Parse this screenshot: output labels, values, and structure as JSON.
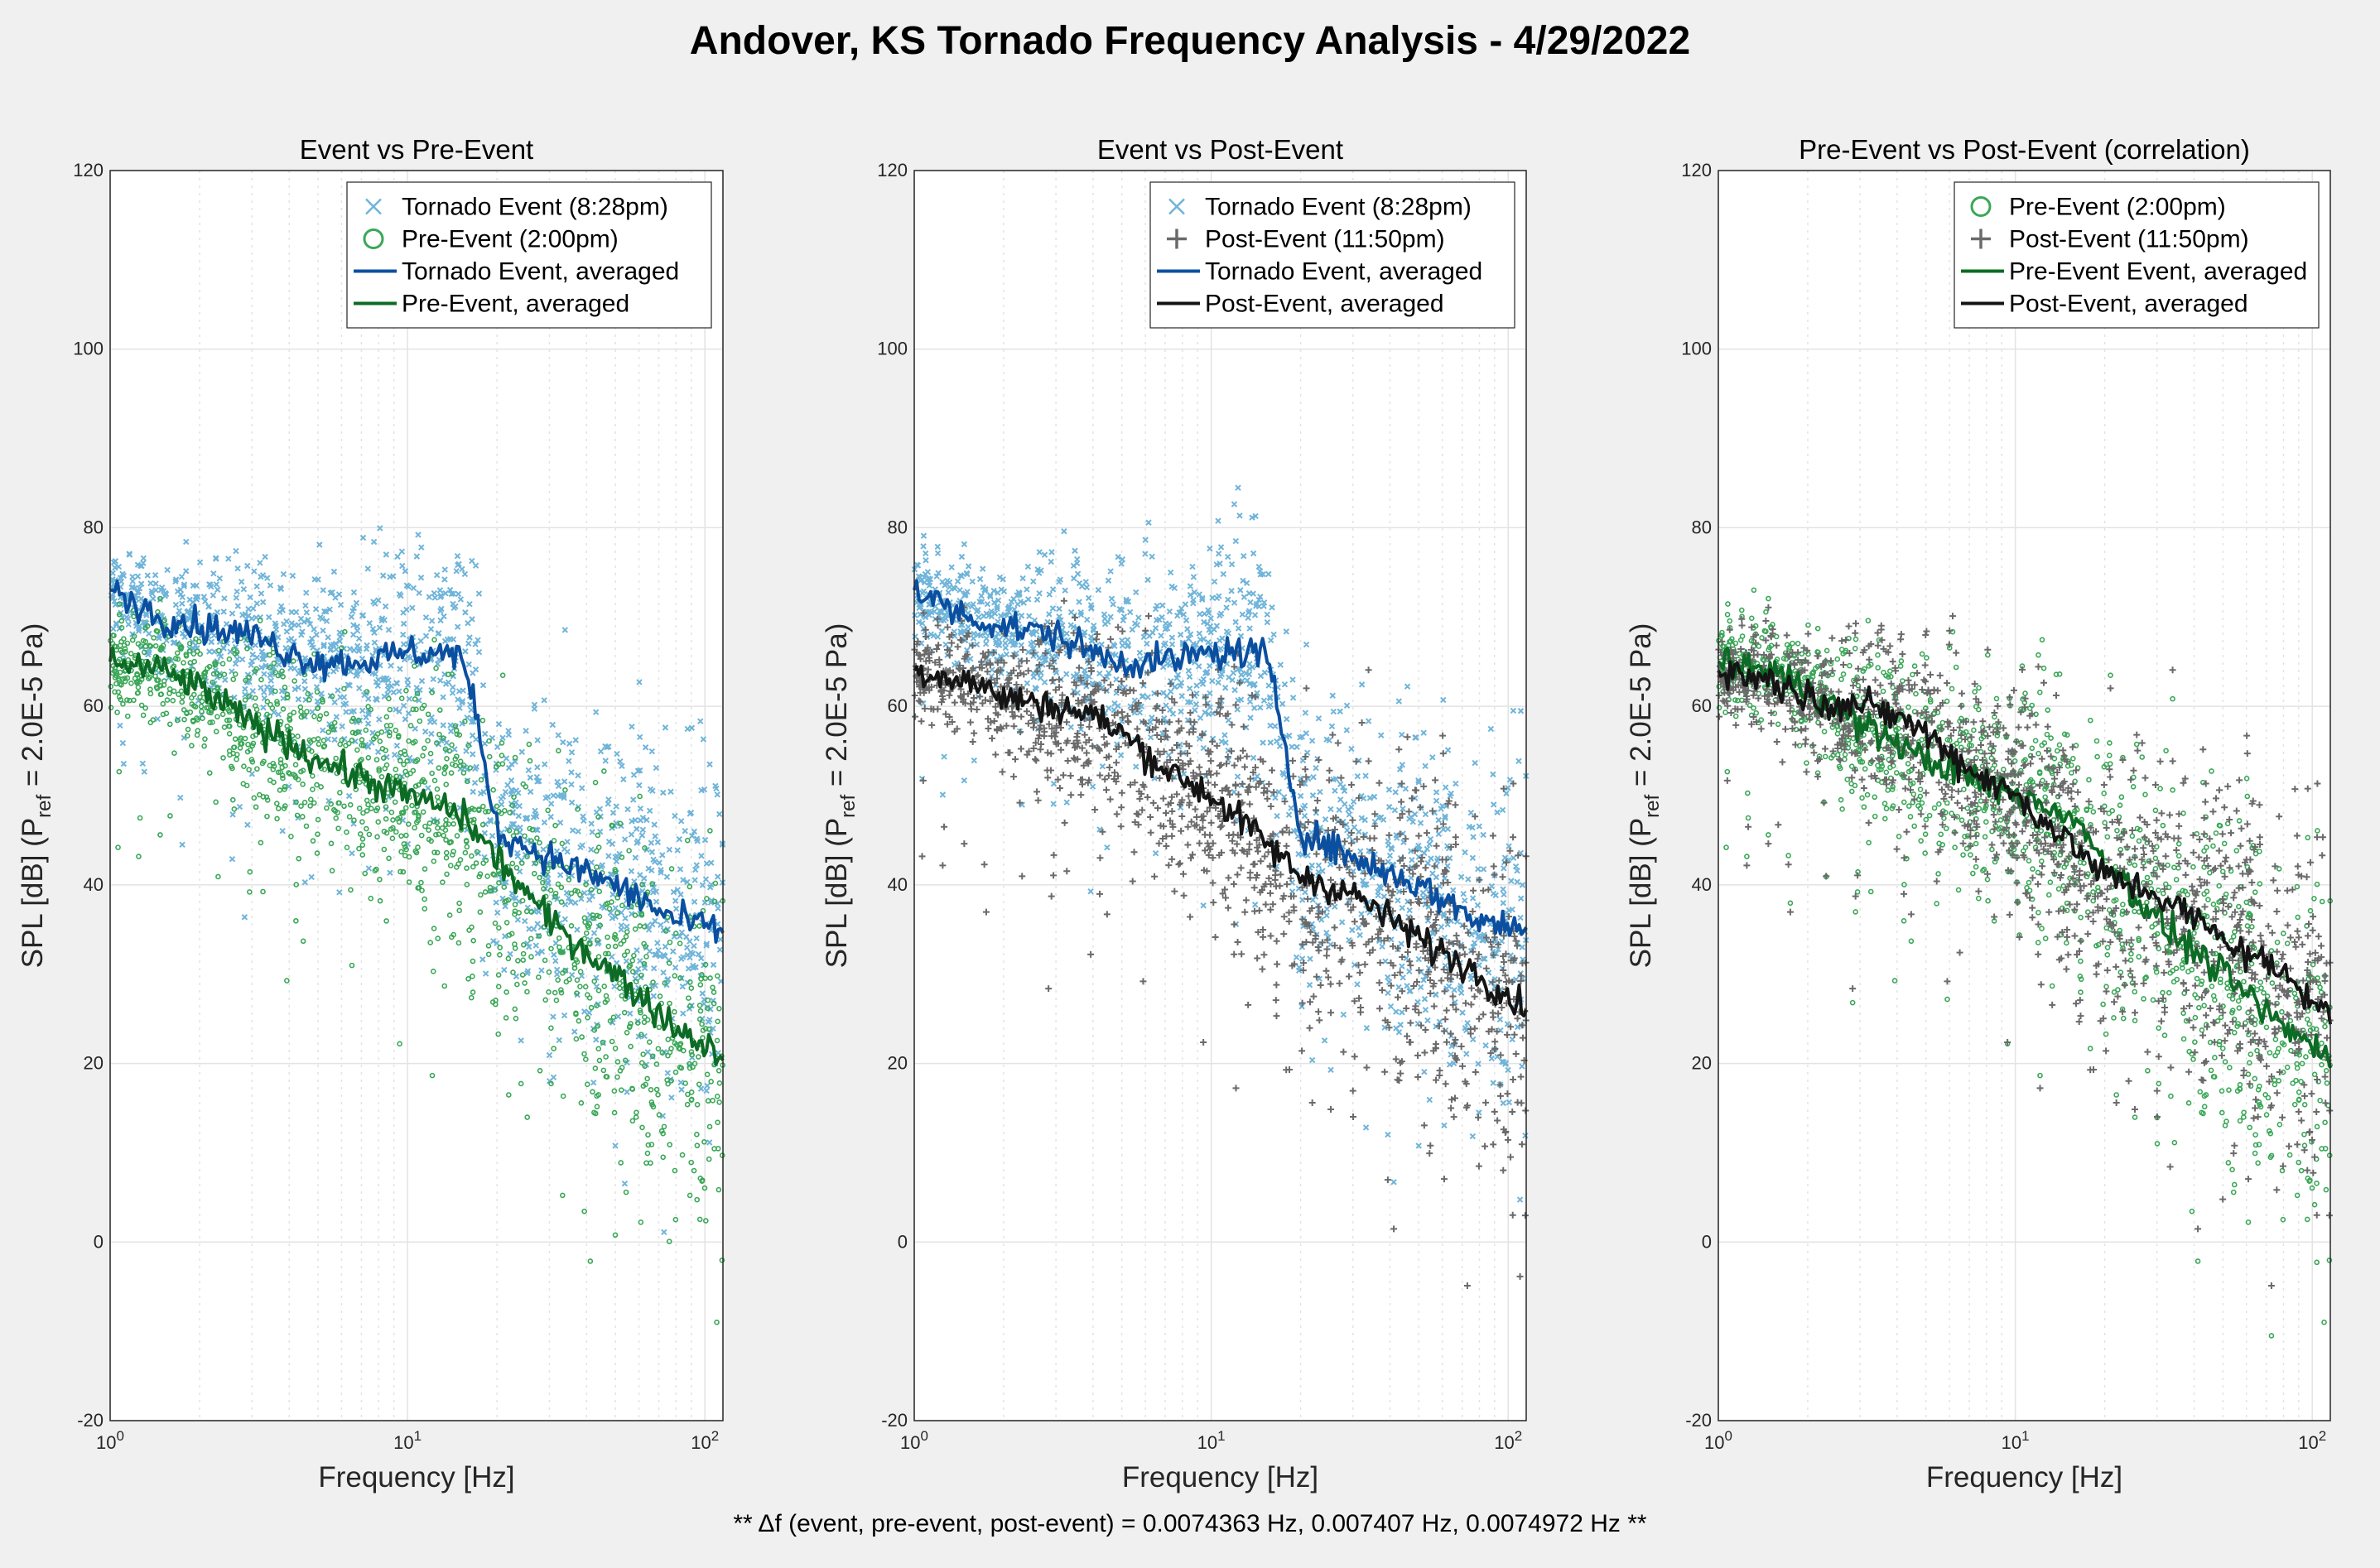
{
  "figure": {
    "title": "Andover, KS Tornado Frequency Analysis - 4/29/2022",
    "footnote": "** Δf (event, pre-event, post-event) = 0.0074363 Hz, 0.007407 Hz, 0.0074972 Hz **"
  },
  "colors": {
    "event_points": "#6fb4d9",
    "event_avg": "#0b4fa0",
    "pre_points": "#3aa757",
    "pre_avg": "#0c6b24",
    "post_points": "#6a6a6a",
    "post_avg": "#141414",
    "grid": "#e3e3e3",
    "axes_bg": "#ffffff"
  },
  "chart_data": [
    {
      "type": "scatter",
      "title": "Event vs Pre-Event",
      "xlabel": "Frequency [Hz]",
      "ylabel": "SPL [dB] (P_ref = 2.0E-5 Pa)",
      "xscale": "log",
      "xlim": [
        1,
        115
      ],
      "ylim": [
        -20,
        120
      ],
      "yticks": [
        -20,
        0,
        20,
        40,
        60,
        80,
        100,
        120
      ],
      "xticks": [
        {
          "value": 1,
          "label": "10^0"
        },
        {
          "value": 10,
          "label": "10^1"
        },
        {
          "value": 100,
          "label": "10^2"
        }
      ],
      "grid": true,
      "legend_position": "top-right",
      "series": [
        {
          "name": "Tornado Event (8:28pm)",
          "kind": "points",
          "marker": "x",
          "color": "event_points",
          "x": [
            1,
            1.5,
            2,
            3,
            4,
            5,
            7,
            10,
            13,
            15,
            17,
            20,
            30,
            50,
            80,
            115
          ],
          "y": [
            73,
            70,
            69,
            68,
            66,
            65,
            65,
            66,
            66,
            66,
            59,
            46,
            43,
            40,
            36,
            35
          ]
        },
        {
          "name": "Pre-Event (2:00pm)",
          "kind": "points",
          "marker": "o",
          "color": "pre_points",
          "x": [
            1,
            1.5,
            2,
            3,
            4,
            5,
            7,
            10,
            15,
            20,
            30,
            50,
            80,
            115
          ],
          "y": [
            65,
            64,
            62,
            58,
            56,
            54,
            52,
            50,
            48,
            43,
            36,
            30,
            24,
            21
          ]
        },
        {
          "name": "Tornado Event, averaged",
          "kind": "line",
          "color": "event_avg",
          "x": [
            1,
            1.5,
            2,
            3,
            4,
            5,
            7,
            10,
            13,
            15,
            17,
            20,
            30,
            50,
            80,
            115
          ],
          "y": [
            73,
            70,
            69,
            68,
            66,
            65,
            65,
            66,
            66,
            66,
            59,
            46,
            43,
            40,
            36,
            35
          ]
        },
        {
          "name": "Pre-Event, averaged",
          "kind": "line",
          "color": "pre_avg",
          "x": [
            1,
            1.5,
            2,
            3,
            4,
            5,
            7,
            10,
            15,
            20,
            30,
            50,
            80,
            115
          ],
          "y": [
            65,
            64,
            62,
            58,
            56,
            54,
            52,
            50,
            48,
            43,
            36,
            30,
            24,
            21
          ]
        }
      ]
    },
    {
      "type": "scatter",
      "title": "Event vs Post-Event",
      "xlabel": "Frequency [Hz]",
      "ylabel": "SPL [dB] (P_ref = 2.0E-5 Pa)",
      "xscale": "log",
      "xlim": [
        1,
        115
      ],
      "ylim": [
        -20,
        120
      ],
      "yticks": [
        -20,
        0,
        20,
        40,
        60,
        80,
        100,
        120
      ],
      "xticks": [
        {
          "value": 1,
          "label": "10^0"
        },
        {
          "value": 10,
          "label": "10^1"
        },
        {
          "value": 100,
          "label": "10^2"
        }
      ],
      "grid": true,
      "legend_position": "top-right",
      "series": [
        {
          "name": "Tornado Event (8:28pm)",
          "kind": "points",
          "marker": "x",
          "color": "event_points",
          "x": [
            1,
            1.5,
            2,
            3,
            4,
            5,
            7,
            10,
            13,
            15,
            17,
            20,
            30,
            50,
            80,
            115
          ],
          "y": [
            73,
            70,
            69,
            68,
            66,
            65,
            65,
            66,
            66,
            66,
            59,
            46,
            43,
            40,
            36,
            35
          ]
        },
        {
          "name": "Post-Event (11:50pm)",
          "kind": "points",
          "marker": "+",
          "color": "post_points",
          "x": [
            1,
            1.5,
            2,
            3,
            4,
            5,
            7,
            10,
            15,
            20,
            30,
            50,
            80,
            115
          ],
          "y": [
            64,
            63,
            61,
            60,
            59,
            57,
            53,
            50,
            45,
            41,
            39,
            34,
            30,
            26
          ]
        },
        {
          "name": "Tornado Event, averaged",
          "kind": "line",
          "color": "event_avg",
          "x": [
            1,
            1.5,
            2,
            3,
            4,
            5,
            7,
            10,
            13,
            15,
            17,
            20,
            30,
            50,
            80,
            115
          ],
          "y": [
            73,
            70,
            69,
            68,
            66,
            65,
            65,
            66,
            66,
            66,
            59,
            46,
            43,
            40,
            36,
            35
          ]
        },
        {
          "name": "Post-Event, averaged",
          "kind": "line",
          "color": "post_avg",
          "x": [
            1,
            1.5,
            2,
            3,
            4,
            5,
            7,
            10,
            15,
            20,
            30,
            50,
            80,
            115
          ],
          "y": [
            64,
            63,
            61,
            60,
            59,
            57,
            53,
            50,
            45,
            41,
            39,
            34,
            30,
            26
          ]
        }
      ]
    },
    {
      "type": "scatter",
      "title": "Pre-Event vs Post-Event (correlation)",
      "xlabel": "Frequency [Hz]",
      "ylabel": "SPL [dB] (P_ref = 2.0E-5 Pa)",
      "xscale": "log",
      "xlim": [
        1,
        115
      ],
      "ylim": [
        -20,
        120
      ],
      "yticks": [
        -20,
        0,
        20,
        40,
        60,
        80,
        100,
        120
      ],
      "xticks": [
        {
          "value": 1,
          "label": "10^0"
        },
        {
          "value": 10,
          "label": "10^1"
        },
        {
          "value": 100,
          "label": "10^2"
        }
      ],
      "grid": true,
      "legend_position": "top-right",
      "series": [
        {
          "name": "Pre-Event (2:00pm)",
          "kind": "points",
          "marker": "o",
          "color": "pre_points",
          "x": [
            1,
            1.5,
            2,
            3,
            4,
            5,
            7,
            10,
            15,
            20,
            30,
            50,
            80,
            115
          ],
          "y": [
            65,
            64,
            62,
            58,
            56,
            54,
            52,
            50,
            48,
            43,
            36,
            30,
            24,
            21
          ]
        },
        {
          "name": "Post-Event (11:50pm)",
          "kind": "points",
          "marker": "+",
          "color": "post_points",
          "x": [
            1,
            1.5,
            2,
            3,
            4,
            5,
            7,
            10,
            15,
            20,
            30,
            50,
            80,
            115
          ],
          "y": [
            64,
            63,
            61,
            60,
            59,
            57,
            53,
            50,
            45,
            41,
            39,
            34,
            30,
            26
          ]
        },
        {
          "name": "Pre-Event Event, averaged",
          "kind": "line",
          "color": "pre_avg",
          "x": [
            1,
            1.5,
            2,
            3,
            4,
            5,
            7,
            10,
            15,
            20,
            30,
            50,
            80,
            115
          ],
          "y": [
            65,
            64,
            62,
            58,
            56,
            54,
            52,
            50,
            48,
            43,
            36,
            30,
            24,
            21
          ]
        },
        {
          "name": "Post-Event, averaged",
          "kind": "line",
          "color": "post_avg",
          "x": [
            1,
            1.5,
            2,
            3,
            4,
            5,
            7,
            10,
            15,
            20,
            30,
            50,
            80,
            115
          ],
          "y": [
            64,
            63,
            61,
            60,
            59,
            57,
            53,
            50,
            45,
            41,
            39,
            34,
            30,
            26
          ]
        }
      ]
    }
  ]
}
